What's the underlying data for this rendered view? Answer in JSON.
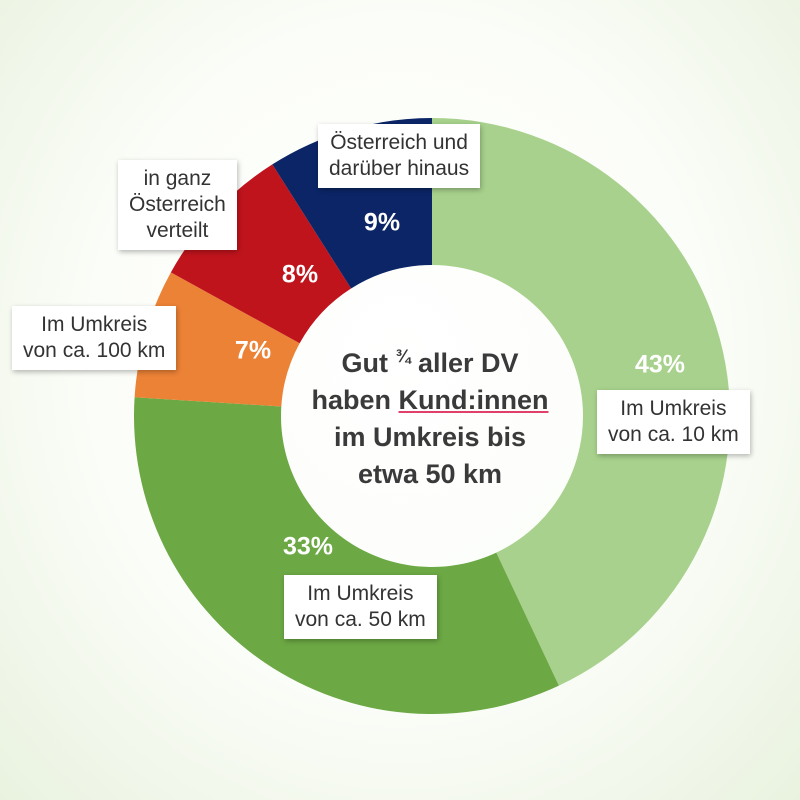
{
  "chart_data": {
    "type": "pie",
    "donut": true,
    "slices": [
      {
        "label": "Im Umkreis\nvon ca. 10 km",
        "value": 43,
        "display": "43%",
        "color": "#a7d18c"
      },
      {
        "label": "Im Umkreis\nvon ca. 50 km",
        "value": 33,
        "display": "33%",
        "color": "#6ca844"
      },
      {
        "label": "Im Umkreis\nvon ca. 100 km",
        "value": 7,
        "display": "7%",
        "color": "#ec8236"
      },
      {
        "label": "in ganz\nÖsterreich\nverteilt",
        "value": 8,
        "display": "8%",
        "color": "#c0141c"
      },
      {
        "label": "Österreich und\ndarüber hinaus",
        "value": 9,
        "display": "9%",
        "color": "#0b2566"
      }
    ],
    "center_text": {
      "line1_a": "Gut ",
      "line1_b": "¾",
      "line1_c": " aller DV",
      "line2_a": "haben ",
      "line2_b": "Kund:innen",
      "line3": "im Umkreis bis",
      "line4": "etwa 50 km"
    }
  }
}
